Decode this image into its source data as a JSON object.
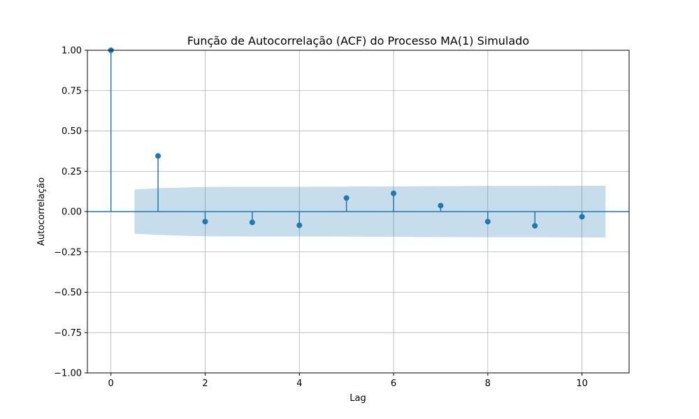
{
  "chart_data": {
    "type": "stem",
    "title": "Função de Autocorrelação (ACF) do Processo MA(1) Simulado",
    "xlabel": "Lag",
    "ylabel": "Autocorrelação",
    "xlim": [
      -0.5,
      11
    ],
    "ylim": [
      -1.0,
      1.0
    ],
    "xticks": [
      0,
      2,
      4,
      6,
      8,
      10
    ],
    "xtick_labels": [
      "0",
      "2",
      "4",
      "6",
      "8",
      "10"
    ],
    "yticks": [
      -1.0,
      -0.75,
      -0.5,
      -0.25,
      0.0,
      0.25,
      0.5,
      0.75,
      1.0
    ],
    "ytick_labels": [
      "−1.00",
      "−0.75",
      "−0.50",
      "−0.25",
      "0.00",
      "0.25",
      "0.50",
      "0.75",
      "1.00"
    ],
    "grid": true,
    "lags": [
      0,
      1,
      2,
      3,
      4,
      5,
      6,
      7,
      8,
      9,
      10
    ],
    "acf": [
      1.0,
      0.345,
      -0.062,
      -0.067,
      -0.085,
      0.084,
      0.113,
      0.037,
      -0.062,
      -0.088,
      -0.032
    ],
    "confidence_band": {
      "x": [
        0.5,
        1,
        2,
        3,
        4,
        5,
        6,
        7,
        8,
        9,
        10,
        10.5
      ],
      "upper": [
        0.137,
        0.145,
        0.153,
        0.154,
        0.154,
        0.155,
        0.156,
        0.158,
        0.159,
        0.159,
        0.16,
        0.16
      ],
      "lower": [
        -0.137,
        -0.145,
        -0.153,
        -0.154,
        -0.154,
        -0.155,
        -0.156,
        -0.158,
        -0.159,
        -0.159,
        -0.16,
        -0.16
      ]
    },
    "colors": {
      "stem": "#1f77b4",
      "band": "#1f77b4",
      "grid": "#b0b0b0",
      "axis": "#000000"
    }
  }
}
